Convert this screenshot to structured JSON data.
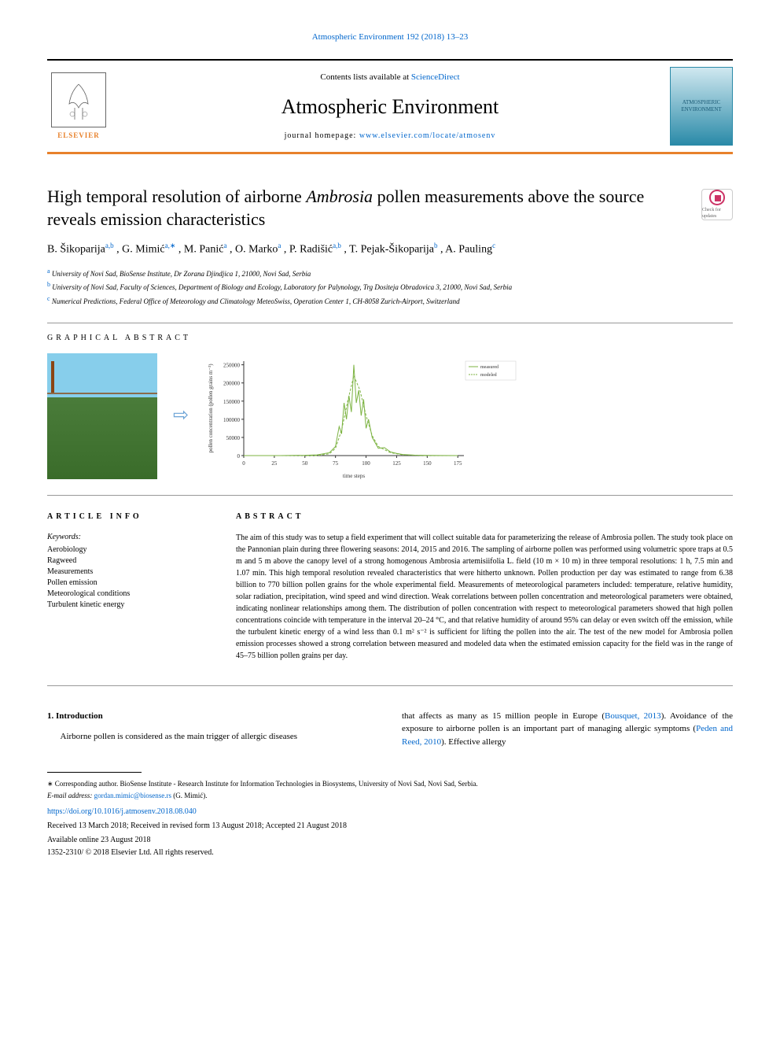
{
  "journal_ref": "Atmospheric Environment 192 (2018) 13–23",
  "header": {
    "contents_text": "Contents lists available at ",
    "contents_link": "ScienceDirect",
    "journal_name": "Atmospheric Environment",
    "homepage_label": "journal homepage: ",
    "homepage_url": "www.elsevier.com/locate/atmosenv",
    "elsevier": "ELSEVIER",
    "cover_text": "ATMOSPHERIC ENVIRONMENT"
  },
  "title_pre": "High temporal resolution of airborne ",
  "title_em": "Ambrosia",
  "title_post": " pollen measurements above the source reveals emission characteristics",
  "updates_label": "Check for updates",
  "authors_html": "B. Šikoparija",
  "authors": {
    "a1_name": "B. Šikoparija",
    "a1_sup": "a,b",
    "a2_name": ", G. Mimić",
    "a2_sup": "a,∗",
    "a3_name": ", M. Panić",
    "a3_sup": "a",
    "a4_name": ", O. Marko",
    "a4_sup": "a",
    "a5_name": ", P. Radišić",
    "a5_sup": "a,b",
    "a6_name": ", T. Pejak-Šikoparija",
    "a6_sup": "b",
    "a7_name": ", A. Pauling",
    "a7_sup": "c"
  },
  "affiliations": {
    "a": "University of Novi Sad, BioSense Institute, Dr Zorana Djindjica 1, 21000, Novi Sad, Serbia",
    "b": "University of Novi Sad, Faculty of Sciences, Department of Biology and Ecology, Laboratory for Palynology, Trg Dositeja Obradovica 3, 21000, Novi Sad, Serbia",
    "c": "Numerical Predictions, Federal Office of Meteorology and Climatology MeteoSwiss, Operation Center 1, CH-8058 Zurich-Airport, Switzerland"
  },
  "sections": {
    "graphical": "GRAPHICAL ABSTRACT",
    "article_info": "ARTICLE INFO",
    "abstract": "ABSTRACT",
    "intro_num": "1. Introduction"
  },
  "chart": {
    "type": "line",
    "ylabel": "pollen concentration (pollen grains m⁻³)",
    "xlabel": "time steps",
    "xlim": [
      0,
      180
    ],
    "ylim": [
      0,
      260000
    ],
    "xticks": [
      0,
      25,
      50,
      75,
      100,
      125,
      150,
      175
    ],
    "yticks": [
      0,
      50000,
      100000,
      150000,
      200000,
      250000
    ],
    "legend": [
      "measured",
      "modeled"
    ],
    "colors": {
      "measured": "#7cb342",
      "modeled": "#7cb342",
      "modeled_style": "dashed",
      "axis": "#333333",
      "bg": "#ffffff"
    },
    "measured_data": [
      [
        0,
        0
      ],
      [
        10,
        0
      ],
      [
        20,
        0
      ],
      [
        30,
        0
      ],
      [
        40,
        500
      ],
      [
        50,
        800
      ],
      [
        60,
        2000
      ],
      [
        70,
        8000
      ],
      [
        75,
        25000
      ],
      [
        78,
        80000
      ],
      [
        80,
        60000
      ],
      [
        82,
        145000
      ],
      [
        84,
        100000
      ],
      [
        86,
        165000
      ],
      [
        88,
        120000
      ],
      [
        90,
        250000
      ],
      [
        92,
        145000
      ],
      [
        94,
        180000
      ],
      [
        96,
        110000
      ],
      [
        98,
        155000
      ],
      [
        100,
        75000
      ],
      [
        102,
        100000
      ],
      [
        105,
        50000
      ],
      [
        110,
        20000
      ],
      [
        115,
        22000
      ],
      [
        120,
        10000
      ],
      [
        125,
        6000
      ],
      [
        130,
        3000
      ],
      [
        140,
        1000
      ],
      [
        150,
        500
      ],
      [
        160,
        200
      ],
      [
        175,
        0
      ]
    ],
    "modeled_data": [
      [
        0,
        0
      ],
      [
        60,
        0
      ],
      [
        70,
        5000
      ],
      [
        75,
        20000
      ],
      [
        80,
        70000
      ],
      [
        85,
        150000
      ],
      [
        90,
        220000
      ],
      [
        95,
        180000
      ],
      [
        100,
        110000
      ],
      [
        105,
        55000
      ],
      [
        110,
        25000
      ],
      [
        120,
        8000
      ],
      [
        130,
        2000
      ],
      [
        150,
        0
      ],
      [
        175,
        0
      ]
    ],
    "label_fontsize": 8,
    "line_width": 1
  },
  "keywords": {
    "label": "Keywords:",
    "items": [
      "Aerobiology",
      "Ragweed",
      "Measurements",
      "Pollen emission",
      "Meteorological conditions",
      "Turbulent kinetic energy"
    ]
  },
  "abstract_text": "The aim of this study was to setup a field experiment that will collect suitable data for parameterizing the release of Ambrosia pollen. The study took place on the Pannonian plain during three flowering seasons: 2014, 2015 and 2016. The sampling of airborne pollen was performed using volumetric spore traps at 0.5 m and 5 m above the canopy level of a strong homogenous Ambrosia artemisiifolia L. field (10 m × 10 m) in three temporal resolutions: 1 h, 7.5 min and 1.07 min. This high temporal resolution revealed characteristics that were hitherto unknown. Pollen production per day was estimated to range from 6.38 billion to 770 billion pollen grains for the whole experimental field. Measurements of meteorological parameters included: temperature, relative humidity, solar radiation, precipitation, wind speed and wind direction. Weak correlations between pollen concentration and meteorological parameters were obtained, indicating nonlinear relationships among them. The distribution of pollen concentration with respect to meteorological parameters showed that high pollen concentrations coincide with temperature in the interval 20–24 °C, and that relative humidity of around 95% can delay or even switch off the emission, while the turbulent kinetic energy of a wind less than 0.1 m² s⁻² is sufficient for lifting the pollen into the air. The test of the new model for Ambrosia pollen emission processes showed a strong correlation between measured and modeled data when the estimated emission capacity for the field was in the range of 45–75 billion pollen grains per day.",
  "body": {
    "intro_left": "Airborne pollen is considered as the main trigger of allergic diseases",
    "intro_right_1": "that affects as many as 15 million people in Europe (",
    "intro_right_link1": "Bousquet, 2013",
    "intro_right_2": "). Avoidance of the exposure to airborne pollen is an important part of managing allergic symptoms (",
    "intro_right_link2": "Peden and Reed, 2010",
    "intro_right_3": "). Effective allergy"
  },
  "footer": {
    "corresponding": "∗ Corresponding author. BioSense Institute - Research Institute for Information Technologies in Biosystems, University of Novi Sad, Novi Sad, Serbia.",
    "email_label": "E-mail address: ",
    "email": "gordan.mimic@biosense.rs",
    "email_name": " (G. Mimić).",
    "doi": "https://doi.org/10.1016/j.atmosenv.2018.08.040",
    "dates": "Received 13 March 2018; Received in revised form 13 August 2018; Accepted 21 August 2018",
    "available": "Available online 23 August 2018",
    "copyright": "1352-2310/ © 2018 Elsevier Ltd. All rights reserved."
  }
}
